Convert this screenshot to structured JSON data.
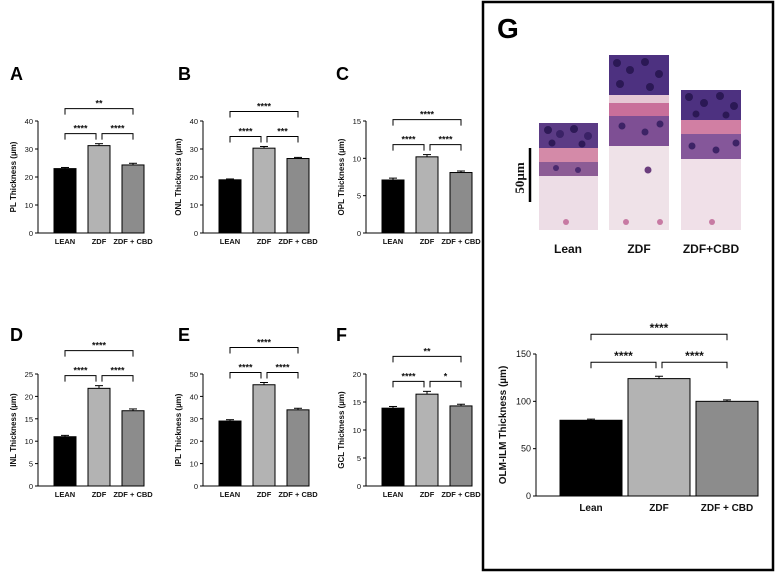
{
  "panel_g": {
    "letter": "G",
    "image_labels": [
      "Lean",
      "ZDF",
      "ZDF+CBD"
    ],
    "scale_bar_label": "50µm"
  },
  "chart_data": [
    {
      "panel": "A",
      "type": "bar",
      "categories": [
        "LEAN",
        "ZDF",
        "ZDF + CBD"
      ],
      "values": [
        23,
        31.2,
        24.3
      ],
      "errors": [
        0.4,
        0.7,
        0.6
      ],
      "colors": [
        "#000000",
        "#b3b3b3",
        "#8c8c8c"
      ],
      "ylabel": "PL Thickness (µm)",
      "ylim": [
        0,
        40
      ],
      "yticks": [
        0,
        10,
        20,
        30,
        40
      ],
      "significance": [
        {
          "from": 0,
          "to": 2,
          "label": "**",
          "level": 2
        },
        {
          "from": 0,
          "to": 1,
          "label": "****",
          "level": 1
        },
        {
          "from": 1,
          "to": 2,
          "label": "****",
          "level": 1
        }
      ]
    },
    {
      "panel": "B",
      "type": "bar",
      "categories": [
        "LEAN",
        "ZDF",
        "ZDF + CBD"
      ],
      "values": [
        19,
        30.3,
        26.6
      ],
      "errors": [
        0.3,
        0.6,
        0.4
      ],
      "colors": [
        "#000000",
        "#b3b3b3",
        "#8c8c8c"
      ],
      "ylabel": "ONL Thickness (µm)",
      "ylim": [
        0,
        40
      ],
      "yticks": [
        0,
        10,
        20,
        30,
        40
      ],
      "significance": [
        {
          "from": 0,
          "to": 2,
          "label": "****",
          "level": 2
        },
        {
          "from": 0,
          "to": 1,
          "label": "****",
          "level": 1
        },
        {
          "from": 1,
          "to": 2,
          "label": "***",
          "level": 1
        }
      ]
    },
    {
      "panel": "C",
      "type": "bar",
      "categories": [
        "LEAN",
        "ZDF",
        "ZDF + CBD"
      ],
      "values": [
        7.1,
        10.2,
        8.1
      ],
      "errors": [
        0.25,
        0.3,
        0.2
      ],
      "colors": [
        "#000000",
        "#b3b3b3",
        "#8c8c8c"
      ],
      "ylabel": "OPL Thickness (µm)",
      "ylim": [
        0,
        15
      ],
      "yticks": [
        0,
        5,
        10,
        15
      ],
      "significance": [
        {
          "from": 0,
          "to": 2,
          "label": "****",
          "level": 2
        },
        {
          "from": 0,
          "to": 1,
          "label": "****",
          "level": 1
        },
        {
          "from": 1,
          "to": 2,
          "label": "****",
          "level": 1
        }
      ]
    },
    {
      "panel": "D",
      "type": "bar",
      "categories": [
        "LEAN",
        "ZDF",
        "ZDF + CBD"
      ],
      "values": [
        11,
        21.8,
        16.8
      ],
      "errors": [
        0.3,
        0.6,
        0.4
      ],
      "colors": [
        "#000000",
        "#b3b3b3",
        "#8c8c8c"
      ],
      "ylabel": "INL Thickness (µm)",
      "ylim": [
        0,
        25
      ],
      "yticks": [
        0,
        5,
        10,
        15,
        20,
        25
      ],
      "significance": [
        {
          "from": 0,
          "to": 2,
          "label": "****",
          "level": 2
        },
        {
          "from": 0,
          "to": 1,
          "label": "****",
          "level": 1
        },
        {
          "from": 1,
          "to": 2,
          "label": "****",
          "level": 1
        }
      ]
    },
    {
      "panel": "E",
      "type": "bar",
      "categories": [
        "LEAN",
        "ZDF",
        "ZDF + CBD"
      ],
      "values": [
        29,
        45.2,
        34
      ],
      "errors": [
        0.6,
        1.0,
        0.7
      ],
      "colors": [
        "#000000",
        "#b3b3b3",
        "#8c8c8c"
      ],
      "ylabel": "IPL Thickness (µm)",
      "ylim": [
        0,
        50
      ],
      "yticks": [
        0,
        10,
        20,
        30,
        40,
        50
      ],
      "significance": [
        {
          "from": 0,
          "to": 2,
          "label": "****",
          "level": 2
        },
        {
          "from": 0,
          "to": 1,
          "label": "****",
          "level": 1
        },
        {
          "from": 1,
          "to": 2,
          "label": "****",
          "level": 1
        }
      ]
    },
    {
      "panel": "F",
      "type": "bar",
      "categories": [
        "LEAN",
        "ZDF",
        "ZDF + CBD"
      ],
      "values": [
        13.9,
        16.4,
        14.3
      ],
      "errors": [
        0.3,
        0.5,
        0.3
      ],
      "colors": [
        "#000000",
        "#b3b3b3",
        "#8c8c8c"
      ],
      "ylabel": "GCL Thickness (µm)",
      "ylim": [
        0,
        20
      ],
      "yticks": [
        0,
        5,
        10,
        15,
        20
      ],
      "significance": [
        {
          "from": 0,
          "to": 2,
          "label": "**",
          "level": 2
        },
        {
          "from": 0,
          "to": 1,
          "label": "****",
          "level": 1
        },
        {
          "from": 1,
          "to": 2,
          "label": "*",
          "level": 1
        }
      ]
    },
    {
      "panel": "G",
      "type": "bar",
      "categories": [
        "Lean",
        "ZDF",
        "ZDF + CBD"
      ],
      "values": [
        80,
        124,
        100
      ],
      "errors": [
        1.2,
        2.5,
        1.5
      ],
      "colors": [
        "#000000",
        "#b3b3b3",
        "#8c8c8c"
      ],
      "ylabel": "OLM-ILM Thickness (µm)",
      "ylim": [
        0,
        150
      ],
      "yticks": [
        0,
        50,
        100,
        150
      ],
      "significance": [
        {
          "from": 0,
          "to": 2,
          "label": "****",
          "level": 2
        },
        {
          "from": 0,
          "to": 1,
          "label": "****",
          "level": 1
        },
        {
          "from": 1,
          "to": 2,
          "label": "****",
          "level": 1
        }
      ]
    }
  ]
}
